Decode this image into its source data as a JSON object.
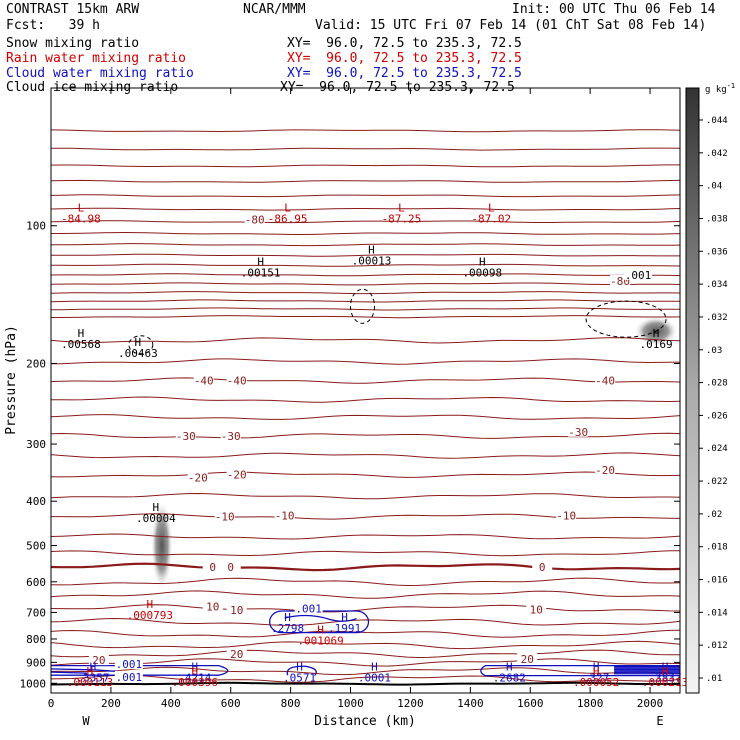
{
  "header": {
    "model": "CONTRAST 15km ARW",
    "org": "NCAR/MMM",
    "init": "Init: 00 UTC Thu 06 Feb 14",
    "fcst": "Fcst:   39 h",
    "valid": "Valid: 15 UTC Fri 07 Feb 14 (01 ChT Sat 08 Feb 14)"
  },
  "fields": [
    {
      "name": "Snow mixing ratio",
      "xy": "XY=  96.0, 72.5 to 235.3, 72.5",
      "color": "#000000"
    },
    {
      "name": "Rain water mixing ratio",
      "xy": "XY=  96.0, 72.5 to 235.3, 72.5",
      "color": "#d00000"
    },
    {
      "name": "Cloud water mixing ratio",
      "xy": "XY=  96.0, 72.5 to 235.3, 72.5",
      "color": "#1010c0"
    },
    {
      "name": "Cloud ice mixing ratio",
      "xy": "XY=  96.0, 72.5 to 235.3, 72.5",
      "color": "#000000"
    }
  ],
  "chart_data": {
    "type": "contour",
    "xlabel": "Distance (km)",
    "ylabel": "Pressure (hPa)",
    "xlim": [
      0,
      2100
    ],
    "ylim": [
      50,
      1050
    ],
    "y_scale": "log",
    "xticks": [
      0,
      200,
      400,
      600,
      800,
      1000,
      1200,
      1400,
      1600,
      1800,
      2000
    ],
    "yticks": [
      100,
      200,
      300,
      400,
      500,
      600,
      700,
      800,
      900,
      1000
    ],
    "x_end_labels": [
      "W",
      "E"
    ],
    "colorbar": {
      "unit": "g kg",
      "unit_exp": "-1",
      "ticks": [
        ".01",
        ".012",
        ".014",
        ".016",
        ".018",
        ".02",
        ".022",
        ".024",
        ".026",
        ".028",
        ".03",
        ".032",
        ".034",
        ".036",
        ".038",
        ".04",
        ".042",
        ".044"
      ]
    },
    "temperature_labels": [
      {
        "text": "-80",
        "x": 680,
        "p": 97
      },
      {
        "text": "-80",
        "x": 1900,
        "p": 132
      },
      {
        "text": "-40",
        "x": 510,
        "p": 218
      },
      {
        "text": "-40",
        "x": 620,
        "p": 218
      },
      {
        "text": "-40",
        "x": 1850,
        "p": 218
      },
      {
        "text": "-30",
        "x": 450,
        "p": 288
      },
      {
        "text": "-30",
        "x": 600,
        "p": 288
      },
      {
        "text": "-30",
        "x": 1760,
        "p": 282
      },
      {
        "text": "-20",
        "x": 490,
        "p": 355
      },
      {
        "text": "-20",
        "x": 620,
        "p": 350
      },
      {
        "text": "-20",
        "x": 1850,
        "p": 342
      },
      {
        "text": "-10",
        "x": 580,
        "p": 432
      },
      {
        "text": "-10",
        "x": 780,
        "p": 430
      },
      {
        "text": "-10",
        "x": 1720,
        "p": 430
      },
      {
        "text": "0",
        "x": 540,
        "p": 557
      },
      {
        "text": "0",
        "x": 600,
        "p": 557
      },
      {
        "text": "0",
        "x": 1640,
        "p": 557
      },
      {
        "text": "10",
        "x": 540,
        "p": 680
      },
      {
        "text": "10",
        "x": 620,
        "p": 692
      },
      {
        "text": "10",
        "x": 1620,
        "p": 690
      },
      {
        "text": "20",
        "x": 620,
        "p": 862
      },
      {
        "text": "20",
        "x": 160,
        "p": 890
      },
      {
        "text": "20",
        "x": 1590,
        "p": 885
      }
    ],
    "extrema_labels": [
      {
        "letter": "L",
        "value": "-84.98",
        "x": 100,
        "p": 93,
        "color": "#c00000"
      },
      {
        "letter": "L",
        "value": "-86.95",
        "x": 790,
        "p": 93,
        "color": "#c00000"
      },
      {
        "letter": "L",
        "value": "-87.25",
        "x": 1170,
        "p": 93,
        "color": "#c00000"
      },
      {
        "letter": "L",
        "value": "-87.02",
        "x": 1470,
        "p": 93,
        "color": "#c00000"
      },
      {
        "letter": "H",
        "value": ".00151",
        "x": 700,
        "p": 122,
        "color": "#000000"
      },
      {
        "letter": "H",
        "value": ".00013",
        "x": 1070,
        "p": 115,
        "color": "#000000"
      },
      {
        "letter": "H",
        "value": ".00098",
        "x": 1440,
        "p": 122,
        "color": "#000000"
      },
      {
        "letter": "H",
        "value": ".00568",
        "x": 100,
        "p": 175,
        "color": "#000000"
      },
      {
        "letter": "H",
        "value": ".00463",
        "x": 290,
        "p": 183,
        "color": "#000000"
      },
      {
        "letter": "H",
        "value": ".0169",
        "x": 2020,
        "p": 175,
        "color": "#000000"
      },
      {
        "letter": "H",
        "value": ".00004",
        "x": 350,
        "p": 420,
        "color": "#000000"
      },
      {
        "letter": "H",
        "value": ".000793",
        "x": 330,
        "p": 685,
        "color": "#d00000"
      },
      {
        "letter": "H",
        "value": ".2798",
        "x": 790,
        "p": 730,
        "color": "#1010c0"
      },
      {
        "letter": "H",
        "value": ".1991",
        "x": 980,
        "p": 730,
        "color": "#1010c0"
      },
      {
        "letter": "H",
        "value": ".001069",
        "x": 900,
        "p": 778,
        "color": "#d00000"
      },
      {
        "letter": "H",
        "value": ".3357",
        "x": 140,
        "p": 937,
        "color": "#1010c0"
      },
      {
        "letter": "H",
        "value": ".000113",
        "x": 130,
        "p": 960,
        "color": "#d00000"
      },
      {
        "letter": "H",
        "value": ".4214",
        "x": 480,
        "p": 937,
        "color": "#1010c0"
      },
      {
        "letter": "H",
        "value": ".000396",
        "x": 480,
        "p": 960,
        "color": "#d00000"
      },
      {
        "letter": "H",
        "value": ".0571",
        "x": 830,
        "p": 937,
        "color": "#1010c0"
      },
      {
        "letter": "H",
        "value": ".0001",
        "x": 1080,
        "p": 937,
        "color": "#1010c0"
      },
      {
        "letter": "H",
        "value": ".2682",
        "x": 1530,
        "p": 937,
        "color": "#1010c0"
      },
      {
        "letter": "H",
        "value": ".327",
        "x": 1820,
        "p": 937,
        "color": "#1010c0"
      },
      {
        "letter": "H",
        "value": ".000052",
        "x": 1820,
        "p": 960,
        "color": "#d00000"
      },
      {
        "letter": "H",
        "value": ".3837",
        "x": 2050,
        "p": 937,
        "color": "#1010c0"
      },
      {
        "letter": "H",
        "value": ".000213",
        "x": 2050,
        "p": 960,
        "color": "#d00000"
      }
    ],
    "cloud_water_labels": [
      {
        "text": ".001",
        "x": 860,
        "p": 687
      },
      {
        "text": ".001",
        "x": 260,
        "p": 908
      },
      {
        "text": ".001",
        "x": 260,
        "p": 968
      }
    ],
    "snow_labels": [
      {
        "text": ".001",
        "x": 1960,
        "p": 128
      }
    ]
  }
}
